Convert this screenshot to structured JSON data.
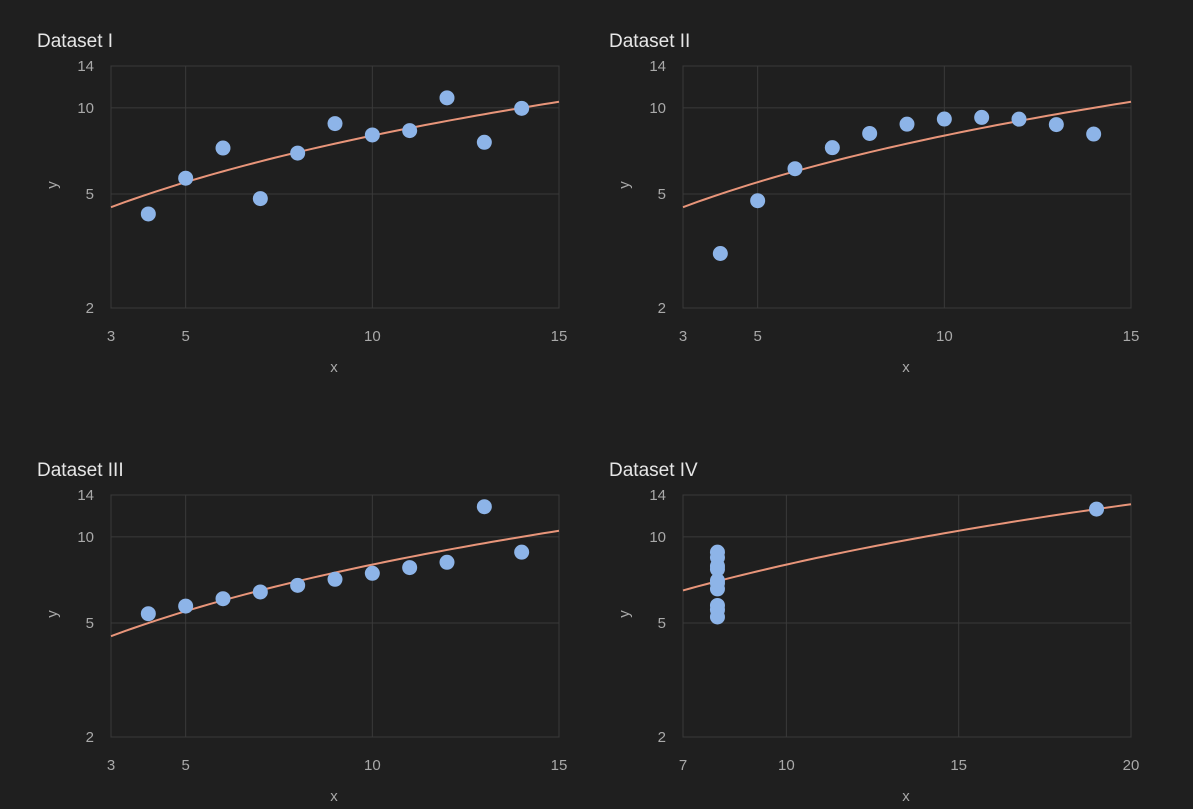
{
  "colors": {
    "background": "#1f1f1f",
    "point": "#8db4e8",
    "regression_line": "#e8957a",
    "grid": "#3a3a3a",
    "text": "#a9a9a9",
    "title": "#e6e6e6"
  },
  "chart_data": [
    {
      "type": "scatter",
      "title": "Dataset I",
      "xlabel": "x",
      "ylabel": "y",
      "xlim": [
        3,
        15
      ],
      "ylim": [
        2,
        14
      ],
      "x_scale": "linear",
      "y_scale": "log",
      "xticks": [
        3,
        5,
        10,
        15
      ],
      "yticks": [
        2,
        5,
        10,
        14
      ],
      "grid": true,
      "x_gridlines": [
        5,
        10
      ],
      "y_gridlines": [
        5,
        10
      ],
      "points": [
        {
          "x": 4,
          "y": 4.26
        },
        {
          "x": 5,
          "y": 5.68
        },
        {
          "x": 6,
          "y": 7.24
        },
        {
          "x": 7,
          "y": 4.82
        },
        {
          "x": 8,
          "y": 6.95
        },
        {
          "x": 9,
          "y": 8.81
        },
        {
          "x": 10,
          "y": 8.04
        },
        {
          "x": 11,
          "y": 8.33
        },
        {
          "x": 12,
          "y": 10.84
        },
        {
          "x": 13,
          "y": 7.58
        },
        {
          "x": 14,
          "y": 9.96
        }
      ],
      "regression": {
        "intercept": 3.0,
        "slope": 0.5
      }
    },
    {
      "type": "scatter",
      "title": "Dataset II",
      "xlabel": "x",
      "ylabel": "y",
      "xlim": [
        3,
        15
      ],
      "ylim": [
        2,
        14
      ],
      "x_scale": "linear",
      "y_scale": "log",
      "xticks": [
        3,
        5,
        10,
        15
      ],
      "yticks": [
        2,
        5,
        10,
        14
      ],
      "grid": true,
      "x_gridlines": [
        5,
        10
      ],
      "y_gridlines": [
        5,
        10
      ],
      "points": [
        {
          "x": 4,
          "y": 3.1
        },
        {
          "x": 5,
          "y": 4.74
        },
        {
          "x": 6,
          "y": 6.13
        },
        {
          "x": 7,
          "y": 7.26
        },
        {
          "x": 8,
          "y": 8.14
        },
        {
          "x": 9,
          "y": 8.77
        },
        {
          "x": 10,
          "y": 9.14
        },
        {
          "x": 11,
          "y": 9.26
        },
        {
          "x": 12,
          "y": 9.13
        },
        {
          "x": 13,
          "y": 8.74
        },
        {
          "x": 14,
          "y": 8.1
        }
      ],
      "regression": {
        "intercept": 3.0,
        "slope": 0.5
      }
    },
    {
      "type": "scatter",
      "title": "Dataset III",
      "xlabel": "x",
      "ylabel": "y",
      "xlim": [
        3,
        15
      ],
      "ylim": [
        2,
        14
      ],
      "x_scale": "linear",
      "y_scale": "log",
      "xticks": [
        3,
        5,
        10,
        15
      ],
      "yticks": [
        2,
        5,
        10,
        14
      ],
      "grid": true,
      "x_gridlines": [
        5,
        10
      ],
      "y_gridlines": [
        5,
        10
      ],
      "points": [
        {
          "x": 4,
          "y": 5.39
        },
        {
          "x": 5,
          "y": 5.73
        },
        {
          "x": 6,
          "y": 6.08
        },
        {
          "x": 7,
          "y": 6.42
        },
        {
          "x": 8,
          "y": 6.77
        },
        {
          "x": 9,
          "y": 7.11
        },
        {
          "x": 10,
          "y": 7.46
        },
        {
          "x": 11,
          "y": 7.81
        },
        {
          "x": 12,
          "y": 8.15
        },
        {
          "x": 13,
          "y": 12.74
        },
        {
          "x": 14,
          "y": 8.84
        }
      ],
      "regression": {
        "intercept": 3.0,
        "slope": 0.5
      }
    },
    {
      "type": "scatter",
      "title": "Dataset IV",
      "xlabel": "x",
      "ylabel": "y",
      "xlim": [
        7,
        20
      ],
      "ylim": [
        2,
        14
      ],
      "x_scale": "linear",
      "y_scale": "log",
      "xticks": [
        7,
        10,
        15,
        20
      ],
      "yticks": [
        2,
        5,
        10,
        14
      ],
      "grid": true,
      "x_gridlines": [
        10,
        15
      ],
      "y_gridlines": [
        5,
        10
      ],
      "points": [
        {
          "x": 8,
          "y": 5.25
        },
        {
          "x": 8,
          "y": 5.56
        },
        {
          "x": 8,
          "y": 5.76
        },
        {
          "x": 8,
          "y": 6.58
        },
        {
          "x": 8,
          "y": 6.89
        },
        {
          "x": 8,
          "y": 7.04
        },
        {
          "x": 8,
          "y": 7.71
        },
        {
          "x": 8,
          "y": 7.91
        },
        {
          "x": 8,
          "y": 8.47
        },
        {
          "x": 8,
          "y": 8.84
        },
        {
          "x": 19,
          "y": 12.5
        }
      ],
      "regression": {
        "intercept": 3.0,
        "slope": 0.5
      }
    }
  ]
}
